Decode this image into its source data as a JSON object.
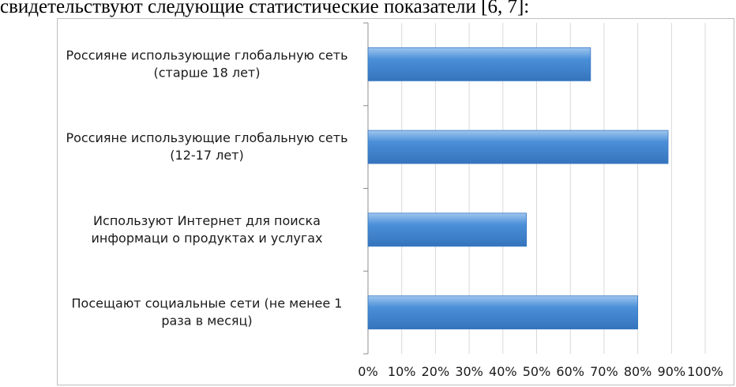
{
  "intro_text": "свидетельствуют следующие статистические показатели [6, 7]:",
  "chart_data": {
    "type": "bar",
    "orientation": "horizontal",
    "categories": [
      [
        "Россияне использующие глобальную сеть",
        "(старше 18 лет)"
      ],
      [
        "Россияне использующие глобальную сеть",
        "(12-17 лет)"
      ],
      [
        "Используют Интернет для поиска",
        "информаци о продуктах и услугах"
      ],
      [
        "Посещают социальные сети (не менее 1",
        "раза в месяц)"
      ]
    ],
    "values": [
      66,
      89,
      47,
      80
    ],
    "xlim": [
      0,
      100
    ],
    "xticks": [
      "0%",
      "10%",
      "20%",
      "30%",
      "40%",
      "50%",
      "60%",
      "70%",
      "80%",
      "90%",
      "100%"
    ],
    "grid": true,
    "bar_color": "#4a8fd8",
    "bar_color_light": "#9fc6ef",
    "bar_color_dark": "#3574bd"
  }
}
